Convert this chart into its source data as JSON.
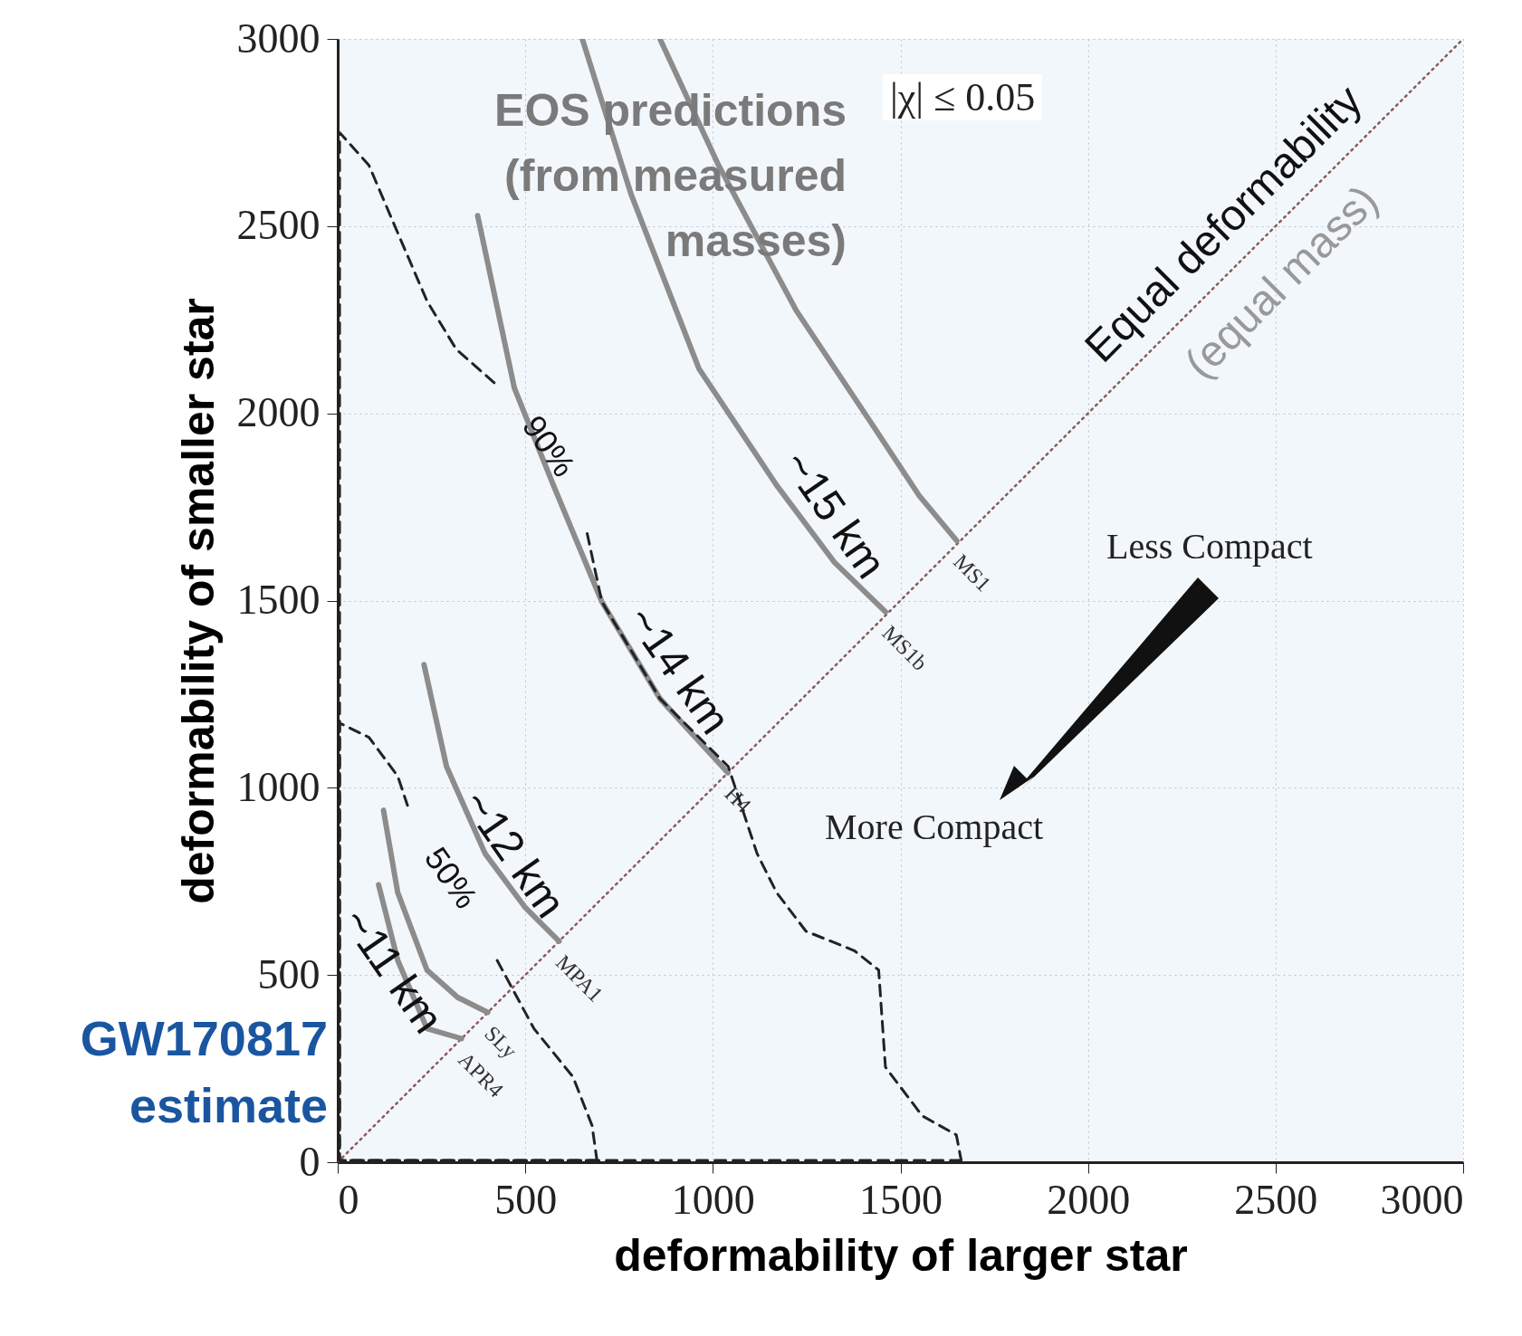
{
  "chart_data": {
    "type": "line",
    "xlabel": "deformability of larger star",
    "ylabel": "deformability of smaller star",
    "xlim": [
      0,
      3000
    ],
    "ylim": [
      0,
      3000
    ],
    "xticks": [
      0,
      500,
      1000,
      1500,
      2000,
      2500,
      3000
    ],
    "yticks": [
      0,
      500,
      1000,
      1500,
      2000,
      2500,
      3000
    ],
    "grid": true,
    "series": [
      {
        "color": "#8b5a5a",
        "line_style": "dotted",
        "x": [
          0,
          3000
        ],
        "values": [
          0,
          3000
        ]
      },
      {
        "name": "MS1",
        "color": "#8c8c8c",
        "line_style": "solid",
        "x": [
          859,
          1015,
          1222,
          1429,
          1550,
          1650
        ],
        "values": [
          3000,
          2663,
          2275,
          1964,
          1780,
          1660
        ]
      },
      {
        "name": "MS1b",
        "color": "#8c8c8c",
        "line_style": "solid",
        "x": [
          652,
          782,
          963,
          1170,
          1325,
          1460
        ],
        "values": [
          3000,
          2585,
          2119,
          1808,
          1601,
          1470
        ]
      },
      {
        "name": "H4",
        "color": "#8c8c8c",
        "line_style": "solid",
        "x": [
          373,
          471,
          575,
          704,
          859,
          1040
        ],
        "values": [
          2528,
          2067,
          1808,
          1497,
          1238,
          1040
        ]
      },
      {
        "name": "MPA1",
        "color": "#8c8c8c",
        "line_style": "solid",
        "x": [
          230,
          290,
          393,
          500,
          590
        ],
        "values": [
          1329,
          1057,
          824,
          680,
          590
        ]
      },
      {
        "name": "SLy",
        "color": "#8c8c8c",
        "line_style": "solid",
        "x": [
          122,
          160,
          238,
          320,
          400
        ],
        "values": [
          940,
          720,
          513,
          440,
          400
        ]
      },
      {
        "name": "APR4",
        "color": "#8c8c8c",
        "line_style": "solid",
        "x": [
          109,
          160,
          238,
          330
        ],
        "values": [
          741,
          539,
          357,
          330
        ]
      },
      {
        "color": "#222222",
        "line_style": "dashed",
        "x": [
          1662,
          5,
          5,
          83,
          160,
          238,
          316,
          419,
          540,
          665,
          704,
          859,
          1041,
          1118,
          1170,
          1248,
          1377,
          1442,
          1460,
          1558,
          1649,
          1662
        ],
        "values": [
          5,
          5,
          2750,
          2663,
          2482,
          2300,
          2171,
          2080,
          null,
          1679,
          1497,
          1238,
          1057,
          824,
          720,
          617,
          565,
          513,
          254,
          124,
          73,
          5
        ]
      },
      {
        "color": "#222222",
        "line_style": "dashed",
        "x": [
          691,
          5,
          5,
          83,
          160,
          186,
          300,
          425,
          523,
          627,
          678,
          691
        ],
        "values": [
          5,
          5,
          1173,
          1135,
          1031,
          953,
          null,
          539,
          357,
          228,
          98,
          5
        ]
      }
    ],
    "annotations": [
      "EOS predictions (from measured masses)",
      "|χ| ≤ 0.05",
      "Equal deformability",
      "(equal mass)",
      "Less Compact",
      "More Compact",
      "GW170817 estimate",
      "~15 km",
      "~14 km",
      "~12 km",
      "~11 km",
      "90%",
      "50%"
    ]
  }
}
